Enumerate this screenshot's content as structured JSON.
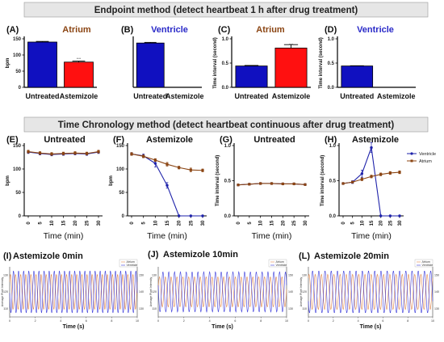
{
  "banners": {
    "endpoint": "Endpoint method (detect heartbeat 1 h after drug treatment)",
    "chronology": "Time Chronology method (detect heartbeat continuous after drug treatment)"
  },
  "colors": {
    "atrium": "#8B4513",
    "ventricle": "#1E22AA",
    "atrium_title": "#8B4513",
    "ventricle_title": "#2A2AC8",
    "bar_blue": "#1010C0",
    "bar_red": "#FF1010"
  },
  "chart_data": [
    {
      "id": "A",
      "panel_label": "(A)",
      "title": "Atrium",
      "type": "bar",
      "categories": [
        "Untreated",
        "Astemizole"
      ],
      "values": [
        140,
        78
      ],
      "errors": [
        2,
        3
      ],
      "bar_colors": [
        "#1010C0",
        "#FF1010"
      ],
      "significance": "****",
      "ylabel": "bpm",
      "ylim": [
        0,
        150
      ],
      "yticks": [
        0,
        50,
        100,
        150
      ]
    },
    {
      "id": "B",
      "panel_label": "(B)",
      "title": "Ventricle",
      "type": "bar",
      "categories": [
        "Untreated",
        "Astemizole"
      ],
      "values": [
        137,
        0
      ],
      "errors": [
        2,
        0
      ],
      "bar_colors": [
        "#1010C0",
        "#FF1010"
      ],
      "ylim": [
        0,
        150
      ]
    },
    {
      "id": "C",
      "panel_label": "(C)",
      "title": "Atrium",
      "type": "bar",
      "categories": [
        "Untreated",
        "Astemizole"
      ],
      "values": [
        0.44,
        0.81
      ],
      "errors": [
        0.01,
        0.07
      ],
      "bar_colors": [
        "#1010C0",
        "#FF1010"
      ],
      "significance": "****",
      "ylabel": "Time interval (second)",
      "ylim": [
        0,
        1.0
      ],
      "yticks": [
        "0.0",
        "0.5",
        "1.0"
      ]
    },
    {
      "id": "D",
      "panel_label": "(D)",
      "title": "Ventricle",
      "type": "bar",
      "categories": [
        "Untreated",
        "Astemizole"
      ],
      "values": [
        0.44,
        0
      ],
      "errors": [
        0.005,
        0
      ],
      "bar_colors": [
        "#1010C0",
        "#FF1010"
      ],
      "ylabel": "Time interval (second)",
      "ylim": [
        0,
        1.0
      ],
      "yticks": [
        "0.0",
        "0.5",
        "1.0"
      ]
    },
    {
      "id": "E",
      "panel_label": "(E)",
      "title": "Untreated",
      "type": "line",
      "x": [
        0,
        5,
        10,
        15,
        20,
        25,
        30
      ],
      "series": [
        {
          "name": "Ventricle",
          "values": [
            136,
            133,
            131,
            132,
            133,
            132,
            136
          ],
          "errors": [
            3,
            3,
            3,
            3,
            3,
            3,
            3
          ]
        },
        {
          "name": "Atrium",
          "values": [
            137,
            134,
            132,
            133,
            134,
            133,
            137
          ],
          "errors": [
            3,
            3,
            3,
            3,
            3,
            3,
            3
          ]
        }
      ],
      "ylabel": "bpm",
      "xlabel": "Time (min)",
      "ylim": [
        0,
        150
      ],
      "yticks": [
        0,
        50,
        100,
        150
      ]
    },
    {
      "id": "F",
      "panel_label": "(F)",
      "title": "Astemizole",
      "type": "line",
      "x": [
        0,
        5,
        10,
        15,
        20,
        25,
        30
      ],
      "series": [
        {
          "name": "Ventricle",
          "values": [
            132,
            128,
            112,
            65,
            0,
            0,
            0
          ],
          "errors": [
            3,
            4,
            8,
            6,
            0,
            0,
            0
          ]
        },
        {
          "name": "Atrium",
          "values": [
            132,
            127,
            119,
            110,
            103,
            98,
            97
          ],
          "errors": [
            3,
            3,
            3,
            4,
            3,
            4,
            3
          ]
        }
      ],
      "ylabel": "bpm",
      "xlabel": "Time (min)",
      "ylim": [
        0,
        150
      ],
      "yticks": [
        0,
        50,
        100,
        150
      ]
    },
    {
      "id": "G",
      "panel_label": "(G)",
      "title": "Untreated",
      "type": "line",
      "x": [
        0,
        5,
        10,
        15,
        20,
        25,
        30
      ],
      "series": [
        {
          "name": "Ventricle",
          "values": [
            0.44,
            0.45,
            0.46,
            0.46,
            0.455,
            0.455,
            0.445
          ],
          "errors": [
            0.01,
            0.01,
            0.01,
            0.01,
            0.01,
            0.01,
            0.01
          ]
        },
        {
          "name": "Atrium",
          "values": [
            0.44,
            0.45,
            0.46,
            0.46,
            0.455,
            0.455,
            0.445
          ],
          "errors": [
            0.01,
            0.01,
            0.01,
            0.01,
            0.01,
            0.01,
            0.01
          ]
        }
      ],
      "ylabel": "Time interval (second)",
      "xlabel": "Time (min)",
      "ylim": [
        0,
        1.0
      ],
      "yticks": [
        "0.0",
        "0.5",
        "1.0"
      ]
    },
    {
      "id": "H",
      "panel_label": "(H)",
      "title": "Astemizole",
      "type": "line",
      "x": [
        0,
        5,
        10,
        15,
        20,
        25,
        30
      ],
      "series": [
        {
          "name": "Ventricle",
          "values": [
            0.46,
            0.48,
            0.6,
            0.97,
            0,
            0,
            0
          ],
          "errors": [
            0.01,
            0.02,
            0.05,
            0.07,
            0,
            0,
            0
          ]
        },
        {
          "name": "Atrium",
          "values": [
            0.46,
            0.48,
            0.52,
            0.56,
            0.59,
            0.61,
            0.62
          ],
          "errors": [
            0.01,
            0.01,
            0.02,
            0.02,
            0.02,
            0.02,
            0.02
          ]
        }
      ],
      "legend": [
        "Ventricle",
        "Atrium"
      ],
      "legend_position": "right",
      "ylabel": "Time interval (second)",
      "xlabel": "Time (min)",
      "ylim": [
        0,
        1.0
      ],
      "yticks": [
        "0.0",
        "0.5",
        "1.0"
      ]
    },
    {
      "id": "I",
      "panel_label": "(I)",
      "title": "Astemizole 0min",
      "type": "line",
      "xlabel": "Time (s)",
      "ylabel": "Average Pixel Intensity",
      "xlim": [
        0,
        10
      ],
      "xticks": [
        0,
        2,
        4,
        6,
        8,
        10
      ],
      "yticks_left": [
        110,
        120,
        130
      ],
      "yticks_right": [
        130,
        140,
        150
      ],
      "legend": [
        "Atrium",
        "Ventricle"
      ],
      "legend_position": "top-right",
      "series": [
        {
          "name": "Atrium",
          "freq_hz": 2.5,
          "amplitude": 0.35,
          "phase": 0.6
        },
        {
          "name": "Ventricle",
          "freq_hz": 2.5,
          "amplitude": 0.42,
          "phase": 3.2
        }
      ]
    },
    {
      "id": "J",
      "panel_label": "(J)",
      "title": "Astemizole 10min",
      "type": "line",
      "xlabel": "Time (s)",
      "ylabel": "Average Pixel Intensity",
      "xlim": [
        0,
        10
      ],
      "xticks": [
        0,
        2,
        4,
        6,
        8,
        10
      ],
      "yticks_left": [
        110,
        120,
        130
      ],
      "yticks_right": [
        130,
        140,
        150
      ],
      "legend": [
        "Atrium",
        "Ventricle"
      ],
      "legend_position": "top-right",
      "series": [
        {
          "name": "Atrium",
          "freq_hz": 2.2,
          "amplitude": 0.3,
          "phase": 0.2
        },
        {
          "name": "Ventricle",
          "freq_hz": 2.2,
          "amplitude": 0.4,
          "phase": 2.8
        }
      ]
    },
    {
      "id": "L",
      "panel_label": "(L)",
      "title": "Astemizole 20min",
      "type": "line",
      "xlabel": "Time (s)",
      "ylabel": "Average Pixel Intensity",
      "xlim": [
        0,
        10
      ],
      "xticks": [
        0,
        2,
        4,
        6,
        8,
        10
      ],
      "yticks_left": [
        110,
        120,
        130
      ],
      "yticks_right": [
        130,
        140,
        150
      ],
      "legend": [
        "Atrium",
        "Ventricle"
      ],
      "legend_position": "top-right",
      "series": [
        {
          "name": "Atrium",
          "freq_hz": 2.0,
          "amplitude": 0.35,
          "phase": 0.9
        },
        {
          "name": "Ventricle",
          "freq_hz": 2.0,
          "amplitude": 0.42,
          "phase": 3.6
        }
      ]
    }
  ]
}
